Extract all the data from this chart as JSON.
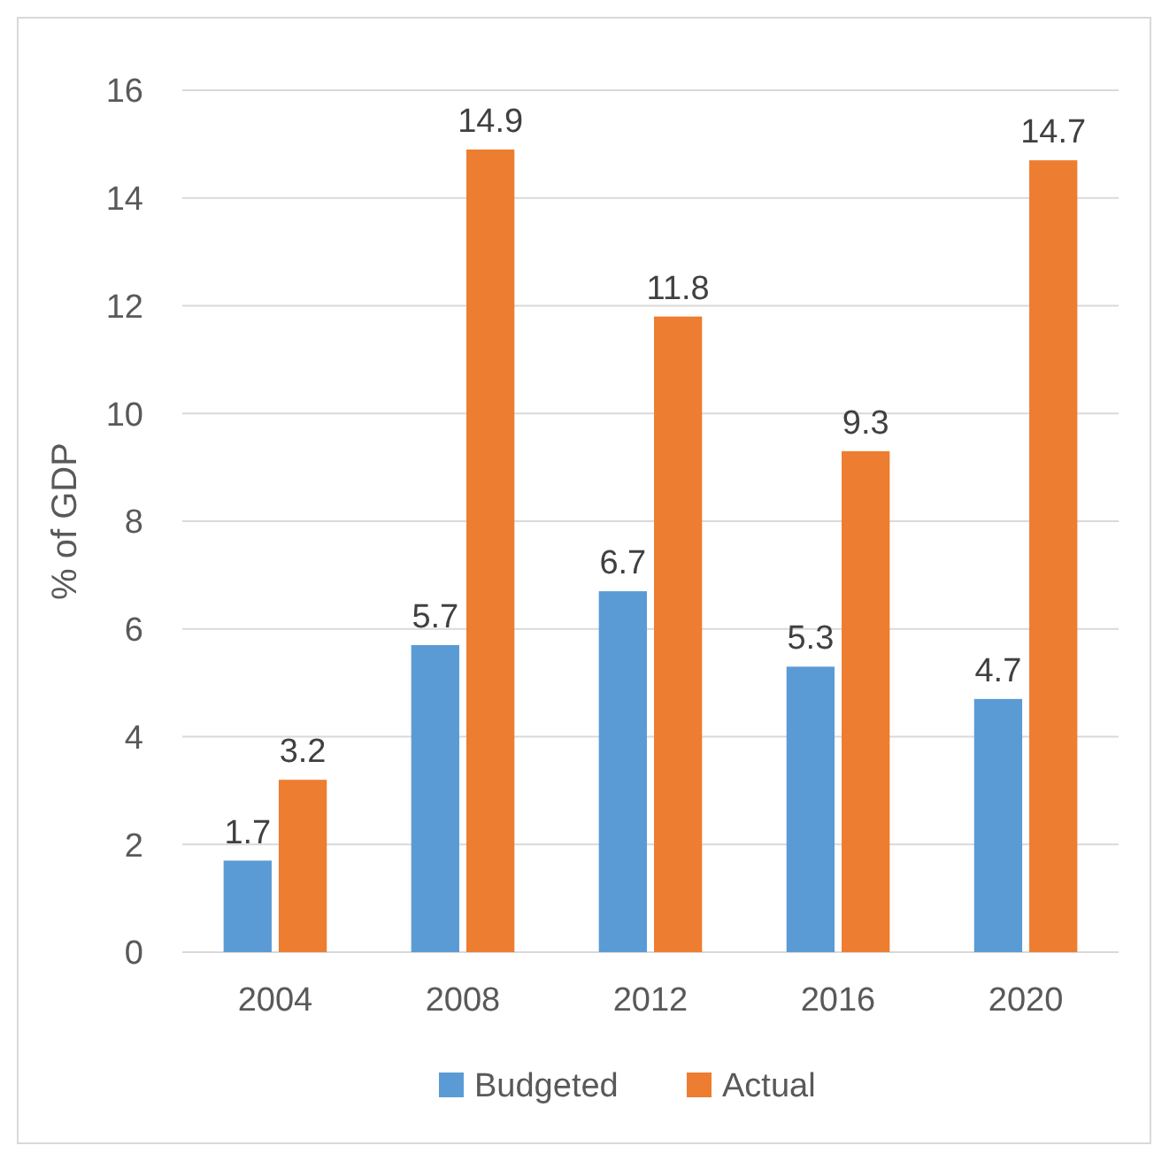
{
  "chart_data": {
    "type": "bar",
    "categories": [
      "2004",
      "2008",
      "2012",
      "2016",
      "2020"
    ],
    "series": [
      {
        "name": "Budgeted",
        "color": "#5b9bd5",
        "values": [
          1.7,
          5.7,
          6.7,
          5.3,
          4.7
        ]
      },
      {
        "name": "Actual",
        "color": "#ed7d31",
        "values": [
          3.2,
          14.9,
          11.8,
          9.3,
          14.7
        ]
      }
    ],
    "ylabel": "% of GDP",
    "ylim": [
      0,
      16
    ],
    "yticks": [
      0,
      2,
      4,
      6,
      8,
      10,
      12,
      14,
      16
    ],
    "grid": "y",
    "legend": "bottom",
    "data_labels": true
  }
}
